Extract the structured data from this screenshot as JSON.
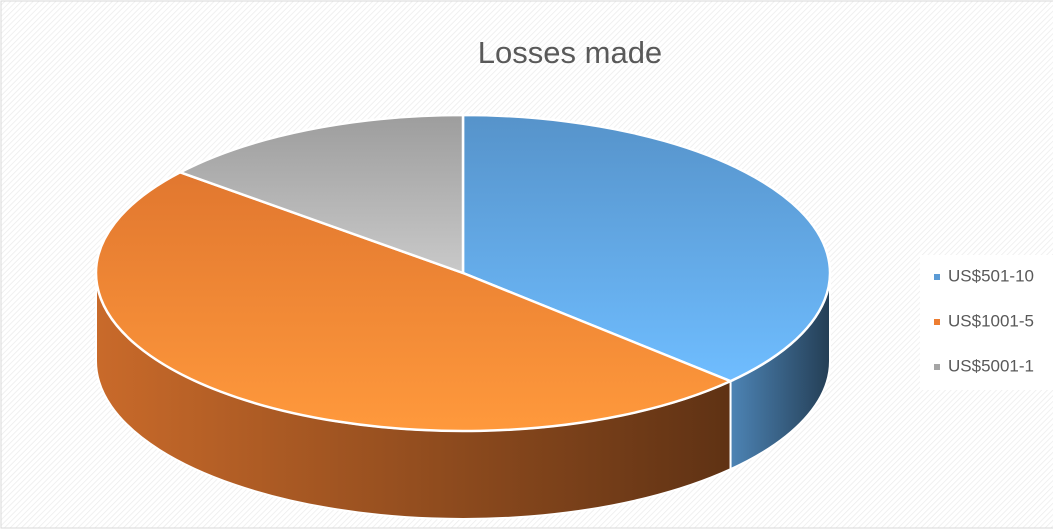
{
  "chart_data": {
    "type": "pie",
    "title": "Losses made",
    "categories": [
      "US$501-10",
      "US$1001-5",
      "US$5001-1"
    ],
    "values": [
      37,
      49,
      14
    ],
    "colors": [
      "#5b9bd5",
      "#ed7d31",
      "#a5a5a5"
    ],
    "legend": "right"
  }
}
